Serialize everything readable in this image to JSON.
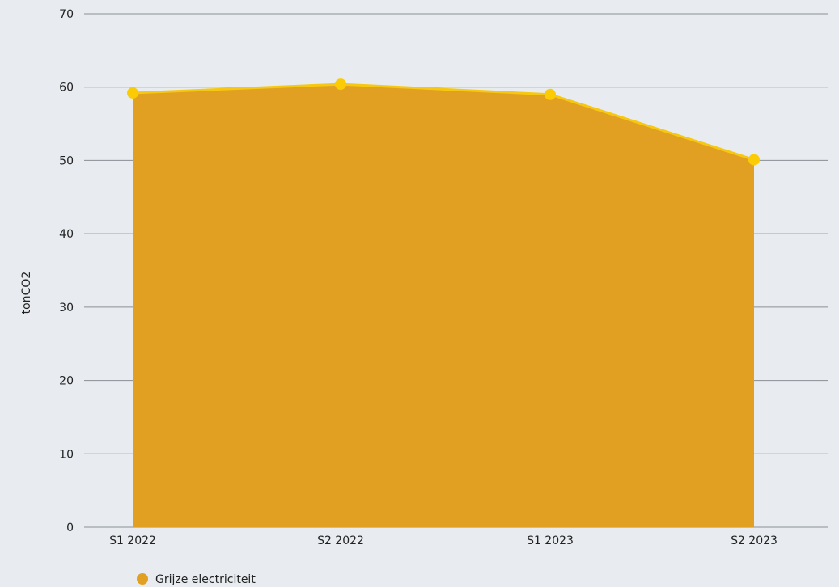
{
  "chart_data": {
    "type": "area",
    "categories": [
      "S1 2022",
      "S2 2022",
      "S1 2023",
      "S2 2023"
    ],
    "series": [
      {
        "name": "Grijze electriciteit",
        "values": [
          59.2,
          60.4,
          59.0,
          50.1
        ],
        "fill_color": "#e2a022",
        "line_color": "#f7c811",
        "marker_color": "#fbcc05"
      }
    ],
    "ylabel": "tonCO2",
    "ylim": [
      0,
      70
    ],
    "yticks": [
      0,
      10,
      20,
      30,
      40,
      50,
      60,
      70
    ],
    "grid": true,
    "legend_position": "bottom-left",
    "colors": {
      "background": "#e8ecf0",
      "gridline": "#8a8f94",
      "text": "#222222"
    }
  }
}
